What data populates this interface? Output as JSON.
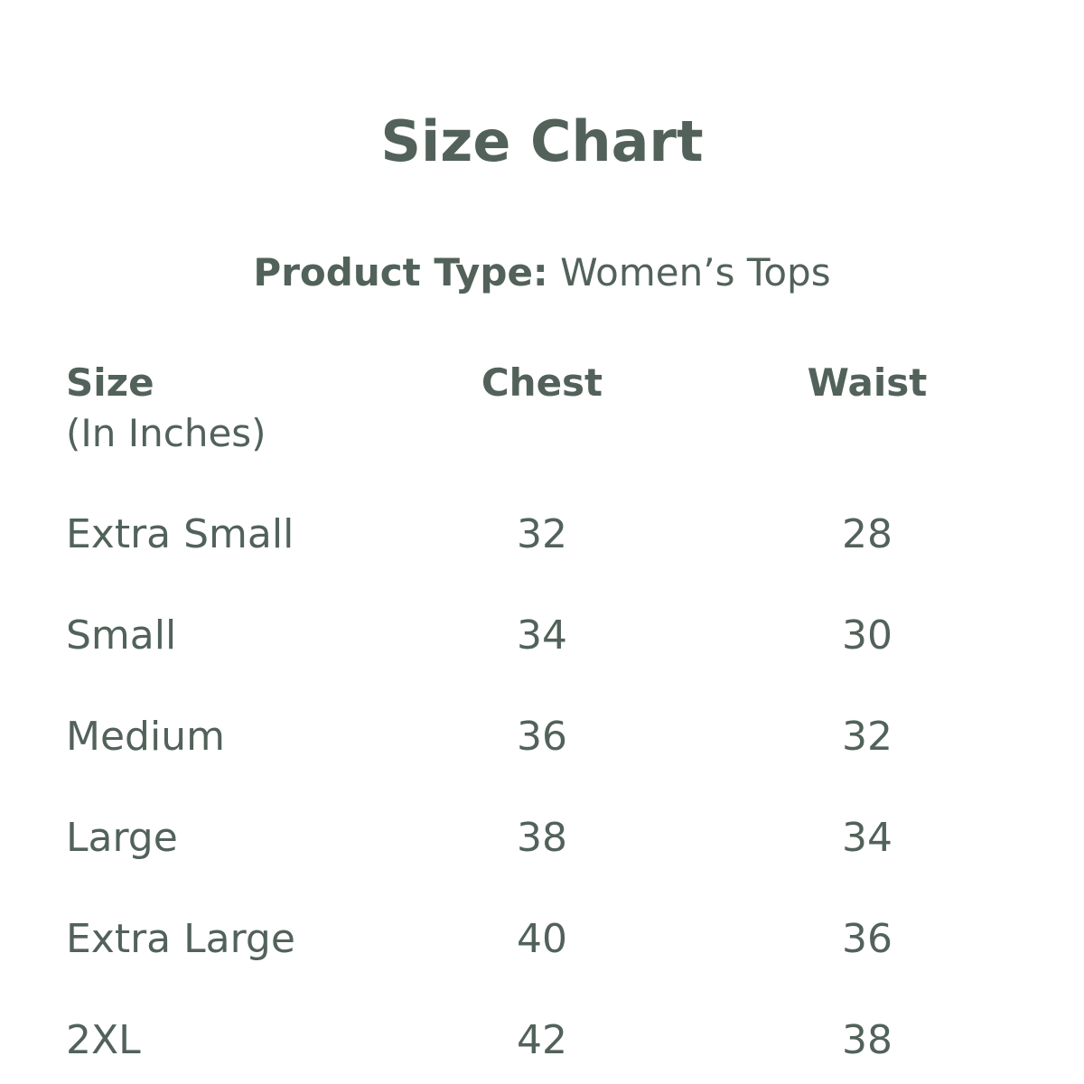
{
  "title": "Size Chart",
  "product_type": {
    "label": "Product Type:",
    "value": "Women’s Tops"
  },
  "table": {
    "headers": {
      "size": "Size",
      "size_note": "(In Inches)",
      "chest": "Chest",
      "waist": "Waist"
    },
    "rows": [
      {
        "size": "Extra Small",
        "chest": "32",
        "waist": "28"
      },
      {
        "size": "Small",
        "chest": "34",
        "waist": "30"
      },
      {
        "size": "Medium",
        "chest": "36",
        "waist": "32"
      },
      {
        "size": "Large",
        "chest": "38",
        "waist": "34"
      },
      {
        "size": "Extra Large",
        "chest": "40",
        "waist": "36"
      },
      {
        "size": "2XL",
        "chest": "42",
        "waist": "38"
      }
    ]
  },
  "colors": {
    "text": "#52625a",
    "background": "#ffffff"
  }
}
